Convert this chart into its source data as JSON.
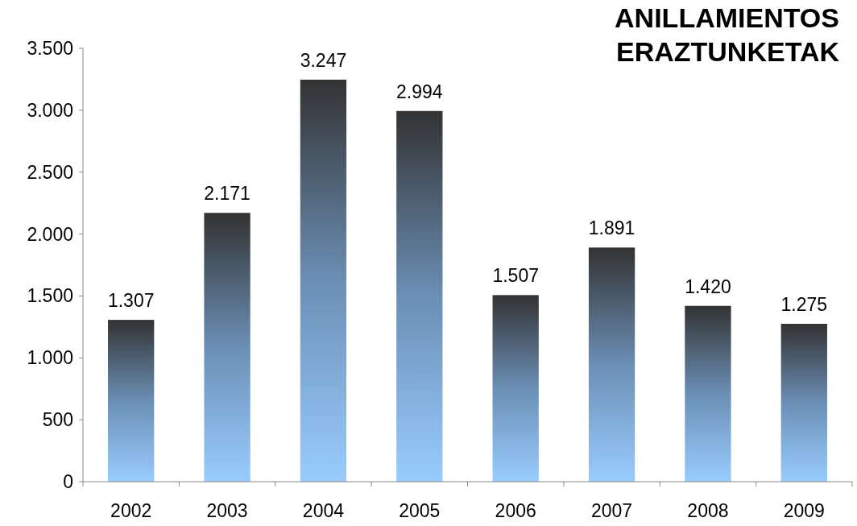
{
  "chart_data": {
    "type": "bar",
    "title": "ANILLAMIENTOS\nERAZTUNKETAK",
    "categories": [
      "2002",
      "2003",
      "2004",
      "2005",
      "2006",
      "2007",
      "2008",
      "2009"
    ],
    "values": [
      1307,
      2171,
      3247,
      2994,
      1507,
      1891,
      1420,
      1275
    ],
    "value_labels": [
      "1.307",
      "2.171",
      "3.247",
      "2.994",
      "1.507",
      "1.891",
      "1.420",
      "1.275"
    ],
    "color": "#99ccff",
    "ylim": [
      0,
      3500
    ],
    "yticks": [
      {
        "value": 0,
        "label": "0"
      },
      {
        "value": 500,
        "label": "500"
      },
      {
        "value": 1000,
        "label": "1.000"
      },
      {
        "value": 1500,
        "label": "1.500"
      },
      {
        "value": 2000,
        "label": "2.000"
      },
      {
        "value": 2500,
        "label": "2.500"
      },
      {
        "value": 3000,
        "label": "3.000"
      },
      {
        "value": 3500,
        "label": "3.500"
      }
    ],
    "grid": false
  }
}
